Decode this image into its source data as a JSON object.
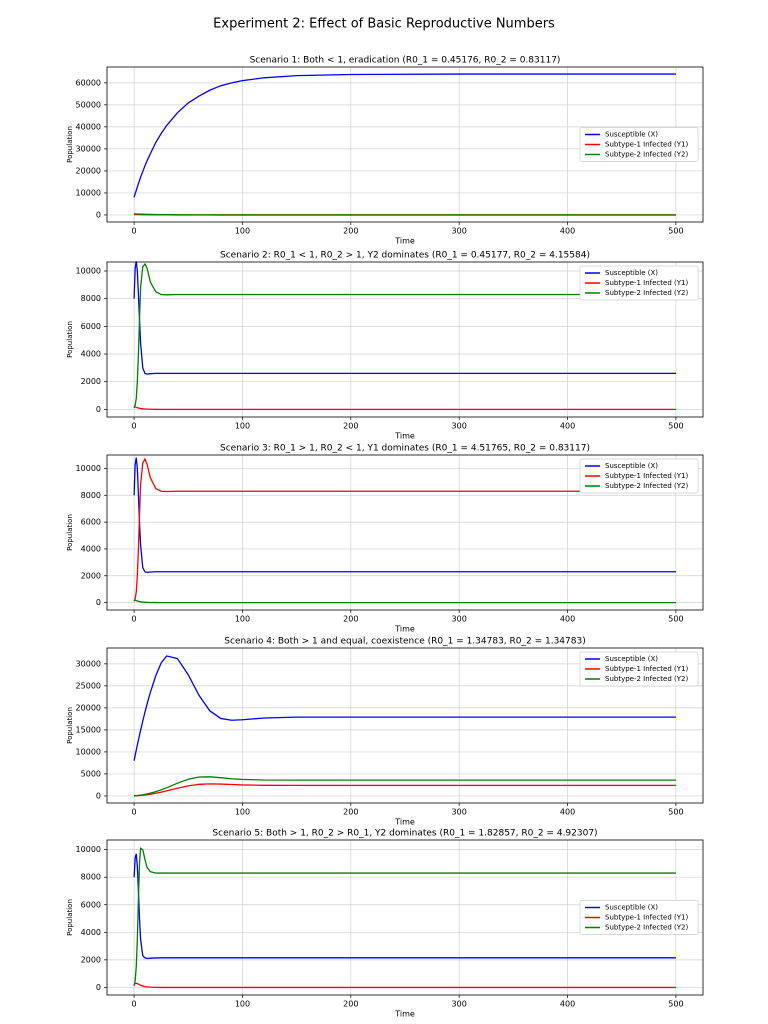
{
  "title": "Experiment 2: Effect of Basic Reproductive Numbers",
  "chart_data": [
    {
      "type": "line",
      "title": "Scenario 1: Both < 1, eradication (R0_1 = 0.45176, R0_2 = 0.83117)",
      "x_label": "Time",
      "y_label": "Population",
      "grid": true,
      "legend": "center right",
      "xlim": [
        -25,
        525
      ],
      "xticks": [
        0,
        100,
        200,
        300,
        400,
        500
      ],
      "ylim": [
        -3200,
        67200
      ],
      "yticks": [
        0,
        10000,
        20000,
        30000,
        40000,
        50000,
        60000
      ],
      "x": [
        0,
        1,
        2,
        3,
        4,
        5,
        6,
        8,
        10,
        12,
        15,
        20,
        25,
        30,
        40,
        50,
        60,
        70,
        80,
        90,
        100,
        120,
        150,
        200,
        300,
        400,
        500
      ],
      "series": [
        {
          "name": "Susceptible (X)",
          "color": "#0000ff",
          "values": [
            8000,
            9600,
            11200,
            12700,
            14200,
            15700,
            17100,
            19700,
            22300,
            24600,
            27800,
            32900,
            37000,
            40600,
            46400,
            50900,
            54000,
            56700,
            58700,
            60000,
            61000,
            62300,
            63300,
            63800,
            64000,
            64000,
            64000
          ]
        },
        {
          "name": "Subtype-1 Infected (Y1)",
          "color": "#ff0000",
          "values": [
            200,
            190,
            180,
            170,
            160,
            150,
            140,
            120,
            100,
            90,
            70,
            50,
            35,
            25,
            12,
            6,
            3,
            0,
            0,
            0,
            0,
            0,
            0,
            0,
            0,
            0,
            0
          ]
        },
        {
          "name": "Subtype-2 Infected (Y2)",
          "color": "#008000",
          "values": [
            500,
            480,
            460,
            440,
            420,
            400,
            380,
            350,
            320,
            290,
            250,
            200,
            160,
            130,
            80,
            50,
            30,
            20,
            10,
            5,
            0,
            0,
            0,
            0,
            0,
            0,
            0
          ]
        }
      ]
    },
    {
      "type": "line",
      "title": "Scenario 2: R0_1 < 1, R0_2 > 1, Y2 dominates (R0_1 = 0.45177, R0_2 = 4.15584)",
      "x_label": "Time",
      "y_label": "Population",
      "grid": true,
      "legend": "upper right",
      "xlim": [
        -25,
        525
      ],
      "xticks": [
        0,
        100,
        200,
        300,
        400,
        500
      ],
      "ylim": [
        -550,
        10650
      ],
      "yticks": [
        0,
        2000,
        4000,
        6000,
        8000,
        10000
      ],
      "x": [
        0,
        1,
        2,
        3,
        4,
        5,
        6,
        8,
        10,
        12,
        15,
        20,
        25,
        30,
        40,
        50,
        60,
        70,
        80,
        90,
        100,
        120,
        150,
        200,
        300,
        400,
        500
      ],
      "series": [
        {
          "name": "Susceptible (X)",
          "color": "#0000ff",
          "values": [
            8000,
            10200,
            10700,
            10000,
            8300,
            6500,
            4800,
            3000,
            2600,
            2550,
            2580,
            2600,
            2600,
            2600,
            2600,
            2600,
            2600,
            2600,
            2600,
            2600,
            2600,
            2600,
            2600,
            2600,
            2600,
            2600,
            2600
          ]
        },
        {
          "name": "Subtype-1 Infected (Y1)",
          "color": "#ff0000",
          "values": [
            200,
            180,
            150,
            120,
            100,
            80,
            60,
            40,
            30,
            20,
            10,
            5,
            0,
            0,
            0,
            0,
            0,
            0,
            0,
            0,
            0,
            0,
            0,
            0,
            0,
            0,
            0
          ]
        },
        {
          "name": "Subtype-2 Infected (Y2)",
          "color": "#008000",
          "values": [
            100,
            300,
            800,
            2000,
            4000,
            6500,
            8800,
            10300,
            10500,
            10200,
            9200,
            8500,
            8300,
            8280,
            8300,
            8300,
            8300,
            8300,
            8300,
            8300,
            8300,
            8300,
            8300,
            8300,
            8300,
            8300,
            8300
          ]
        }
      ]
    },
    {
      "type": "line",
      "title": "Scenario 3: R0_1 > 1, R0_2 < 1, Y1 dominates (R0_1 = 4.51765, R0_2 = 0.83117)",
      "x_label": "Time",
      "y_label": "Population",
      "grid": true,
      "legend": "upper right",
      "xlim": [
        -25,
        525
      ],
      "xticks": [
        0,
        100,
        200,
        300,
        400,
        500
      ],
      "ylim": [
        -550,
        11000
      ],
      "yticks": [
        0,
        2000,
        4000,
        6000,
        8000,
        10000
      ],
      "x": [
        0,
        1,
        2,
        3,
        4,
        5,
        6,
        8,
        10,
        12,
        15,
        20,
        25,
        30,
        40,
        50,
        60,
        70,
        80,
        90,
        100,
        120,
        150,
        200,
        300,
        400,
        500
      ],
      "series": [
        {
          "name": "Susceptible (X)",
          "color": "#0000ff",
          "values": [
            8000,
            10300,
            10800,
            10000,
            8000,
            6000,
            4300,
            2600,
            2300,
            2250,
            2280,
            2300,
            2300,
            2300,
            2300,
            2300,
            2300,
            2300,
            2300,
            2300,
            2300,
            2300,
            2300,
            2300,
            2300,
            2300,
            2300
          ]
        },
        {
          "name": "Subtype-1 Infected (Y1)",
          "color": "#ff0000",
          "values": [
            100,
            300,
            800,
            2000,
            4000,
            6500,
            8800,
            10400,
            10700,
            10300,
            9300,
            8500,
            8300,
            8280,
            8300,
            8300,
            8300,
            8300,
            8300,
            8300,
            8300,
            8300,
            8300,
            8300,
            8300,
            8300,
            8300
          ]
        },
        {
          "name": "Subtype-2 Infected (Y2)",
          "color": "#008000",
          "values": [
            200,
            180,
            150,
            120,
            100,
            80,
            60,
            40,
            30,
            20,
            10,
            5,
            0,
            0,
            0,
            0,
            0,
            0,
            0,
            0,
            0,
            0,
            0,
            0,
            0,
            0,
            0
          ]
        }
      ]
    },
    {
      "type": "line",
      "title": "Scenario 4: Both > 1 and equal, coexistence (R0_1 = 1.34783, R0_2 = 1.34783)",
      "x_label": "Time",
      "y_label": "Population",
      "grid": true,
      "legend": "upper right",
      "xlim": [
        -25,
        525
      ],
      "xticks": [
        0,
        100,
        200,
        300,
        400,
        500
      ],
      "ylim": [
        -1600,
        33600
      ],
      "yticks": [
        0,
        5000,
        10000,
        15000,
        20000,
        25000,
        30000
      ],
      "x": [
        0,
        1,
        2,
        3,
        4,
        5,
        6,
        8,
        10,
        12,
        15,
        20,
        25,
        30,
        40,
        50,
        60,
        70,
        80,
        90,
        100,
        120,
        150,
        200,
        300,
        400,
        500
      ],
      "series": [
        {
          "name": "Susceptible (X)",
          "color": "#0000ff",
          "values": [
            8000,
            9200,
            10400,
            11600,
            12700,
            13800,
            14900,
            17000,
            19000,
            20900,
            23500,
            27300,
            30200,
            31800,
            31200,
            27500,
            22800,
            19300,
            17600,
            17200,
            17300,
            17700,
            17900,
            17900,
            17900,
            17900,
            17900
          ]
        },
        {
          "name": "Subtype-1 Infected (Y1)",
          "color": "#ff0000",
          "values": [
            0,
            20,
            40,
            60,
            80,
            100,
            120,
            170,
            230,
            290,
            400,
            620,
            870,
            1150,
            1750,
            2300,
            2650,
            2750,
            2700,
            2600,
            2500,
            2420,
            2400,
            2400,
            2400,
            2400,
            2400
          ]
        },
        {
          "name": "Subtype-2 Infected (Y2)",
          "color": "#008000",
          "values": [
            0,
            30,
            60,
            90,
            120,
            150,
            190,
            270,
            360,
            460,
            630,
            980,
            1380,
            1850,
            2900,
            3800,
            4300,
            4350,
            4150,
            3900,
            3750,
            3620,
            3600,
            3600,
            3600,
            3600,
            3600
          ]
        }
      ]
    },
    {
      "type": "line",
      "title": "Scenario 5: Both > 1, R0_2 > R0_1, Y2 dominates (R0_1 = 1.82857, R0_2 = 4.92307)",
      "x_label": "Time",
      "y_label": "Population",
      "grid": true,
      "legend": "center right",
      "xlim": [
        -25,
        525
      ],
      "xticks": [
        0,
        100,
        200,
        300,
        400,
        500
      ],
      "ylim": [
        -550,
        10700
      ],
      "yticks": [
        0,
        2000,
        4000,
        6000,
        8000,
        10000
      ],
      "x": [
        0,
        1,
        2,
        3,
        4,
        5,
        6,
        8,
        10,
        12,
        15,
        20,
        25,
        30,
        40,
        50,
        60,
        70,
        80,
        90,
        100,
        120,
        150,
        200,
        300,
        400,
        500
      ],
      "series": [
        {
          "name": "Susceptible (X)",
          "color": "#0000ff",
          "values": [
            8000,
            9400,
            9700,
            8800,
            7000,
            5000,
            3500,
            2300,
            2150,
            2100,
            2120,
            2140,
            2150,
            2150,
            2150,
            2150,
            2150,
            2150,
            2150,
            2150,
            2150,
            2150,
            2150,
            2150,
            2150,
            2150,
            2150
          ]
        },
        {
          "name": "Subtype-1 Infected (Y1)",
          "color": "#ff0000",
          "values": [
            200,
            280,
            300,
            280,
            240,
            200,
            160,
            100,
            60,
            40,
            20,
            5,
            0,
            0,
            0,
            0,
            0,
            0,
            0,
            0,
            0,
            0,
            0,
            0,
            0,
            0,
            0
          ]
        },
        {
          "name": "Subtype-2 Infected (Y2)",
          "color": "#008000",
          "values": [
            100,
            500,
            1500,
            3500,
            6500,
            9000,
            10100,
            10000,
            9300,
            8700,
            8400,
            8300,
            8300,
            8300,
            8300,
            8300,
            8300,
            8300,
            8300,
            8300,
            8300,
            8300,
            8300,
            8300,
            8300,
            8300,
            8300
          ]
        }
      ]
    }
  ]
}
